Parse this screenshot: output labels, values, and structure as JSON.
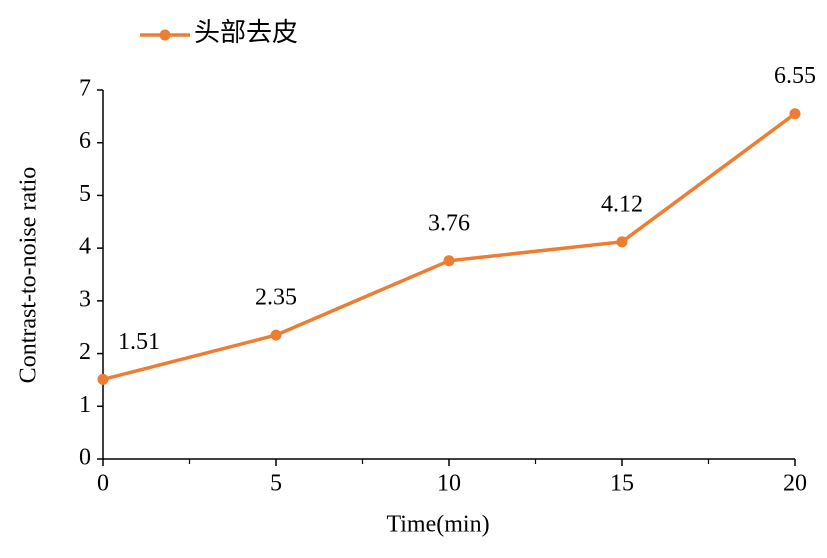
{
  "chart_data": {
    "type": "line",
    "x_label": "Time(min)",
    "y_label": "Contrast-to-noise ratio",
    "x": [
      0,
      5,
      10,
      15,
      20
    ],
    "series": [
      {
        "name": "头部去皮",
        "color": "#ed7d31",
        "values": [
          1.51,
          2.35,
          3.76,
          4.12,
          6.55
        ]
      }
    ],
    "xlim": [
      0,
      20
    ],
    "xticks": [
      0,
      5,
      10,
      15,
      20
    ],
    "ylim": [
      0,
      7
    ],
    "yticks": [
      0,
      1,
      2,
      3,
      4,
      5,
      6,
      7
    ],
    "grid": false,
    "legend": "top-left"
  }
}
